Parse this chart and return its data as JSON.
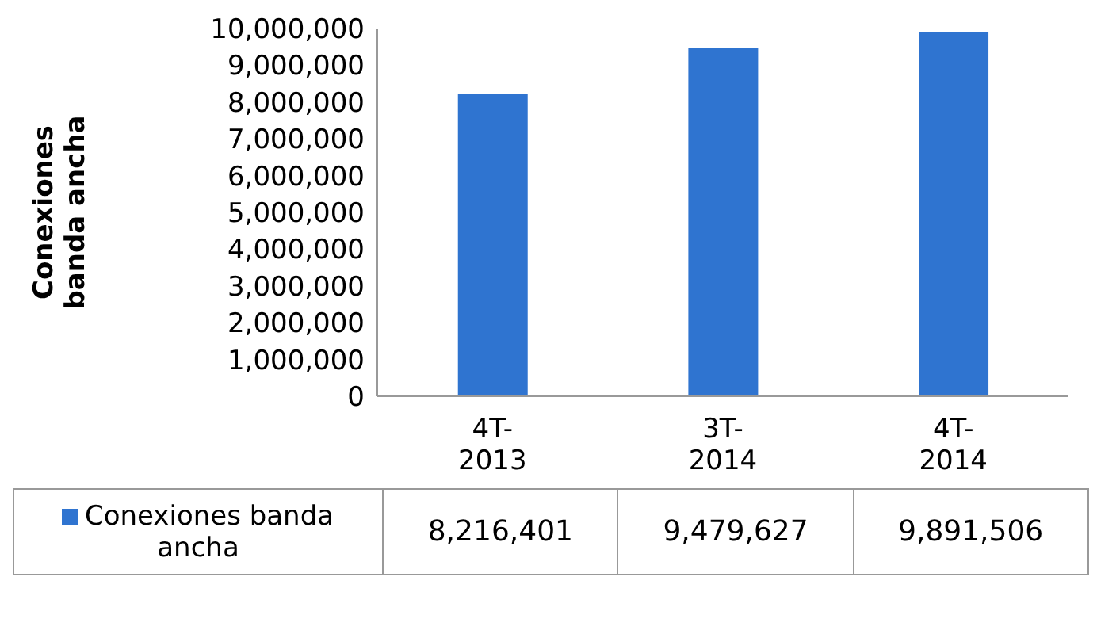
{
  "chart_data": {
    "type": "bar",
    "ylabel": "Conexiones banda ancha",
    "categories": [
      "4T-2013",
      "3T-2014",
      "4T-2014"
    ],
    "series": [
      {
        "name": "Conexiones banda ancha",
        "color": "#2f74d0",
        "values": [
          8216401,
          9479627,
          9891506
        ],
        "value_labels": [
          "8,216,401",
          "9,479,627",
          "9,891,506"
        ]
      }
    ],
    "ylim": [
      0,
      10000000
    ],
    "yticks": [
      0,
      {
        "value": 1000000,
        "label": "1,000,000"
      },
      {
        "value": 2000000,
        "label": "2,000,000"
      },
      {
        "value": 3000000,
        "label": "3,000,000"
      },
      {
        "value": 4000000,
        "label": "4,000,000"
      },
      {
        "value": 5000000,
        "label": "5,000,000"
      },
      {
        "value": 6000000,
        "label": "6,000,000"
      },
      {
        "value": 7000000,
        "label": "7,000,000"
      },
      {
        "value": 8000000,
        "label": "8,000,000"
      },
      {
        "value": 9000000,
        "label": "9,000,000"
      },
      {
        "value": 10000000,
        "label": "10,000,000"
      }
    ],
    "legend": "bottom",
    "grid": false
  }
}
